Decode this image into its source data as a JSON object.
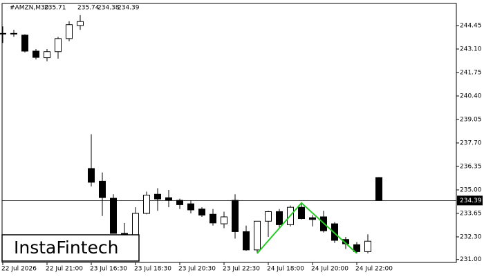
{
  "chart_data": {
    "type": "candlestick",
    "header": {
      "symbol": "#AMZN,M30",
      "ohlc": [
        235.71,
        235.74,
        234.38,
        234.39
      ]
    },
    "watermark": "InstaFintech",
    "categories": [
      "22 Jul 2026",
      null,
      null,
      null,
      "22 Jul 21:00",
      null,
      null,
      null,
      "23 Jul 16:30",
      null,
      null,
      null,
      "23 Jul 18:30",
      null,
      null,
      null,
      "23 Jul 20:30",
      null,
      null,
      null,
      "23 Jul 22:30",
      null,
      null,
      null,
      "24 Jul 18:00",
      null,
      null,
      null,
      "24 Jul 20:00",
      null,
      null,
      null,
      "24 Jul 22:00",
      null,
      null
    ],
    "open": [
      244.0,
      244.0,
      243.9,
      242.98,
      242.6,
      242.95,
      243.7,
      244.45,
      236.23,
      235.5,
      234.52,
      232.5,
      232.4,
      233.65,
      234.75,
      234.55,
      234.4,
      234.2,
      233.9,
      233.6,
      233.05,
      234.4,
      232.6,
      231.55,
      233.2,
      233.75,
      233.0,
      234.0,
      233.4,
      233.45,
      233.05,
      232.15,
      231.85,
      231.45,
      235.71
    ],
    "high": [
      244.4,
      244.2,
      243.95,
      243.1,
      243.1,
      243.8,
      244.7,
      245.05,
      238.2,
      236.0,
      234.75,
      233.1,
      234.0,
      234.9,
      235.1,
      235.0,
      234.5,
      234.4,
      234.0,
      233.9,
      233.75,
      234.75,
      232.95,
      233.2,
      233.8,
      233.9,
      234.1,
      234.3,
      233.55,
      233.8,
      233.15,
      232.3,
      232.0,
      232.45,
      235.74
    ],
    "low": [
      243.45,
      243.8,
      242.9,
      242.5,
      242.4,
      242.55,
      243.55,
      244.2,
      235.2,
      233.5,
      232.5,
      232.2,
      232.2,
      233.6,
      233.8,
      234.0,
      233.9,
      233.65,
      233.45,
      232.95,
      232.8,
      232.2,
      231.5,
      231.35,
      232.3,
      232.75,
      232.9,
      233.3,
      232.9,
      232.55,
      231.95,
      231.6,
      231.35,
      231.35,
      234.38
    ],
    "close": [
      244.0,
      244.0,
      242.98,
      242.62,
      242.95,
      243.7,
      244.5,
      244.68,
      235.44,
      234.56,
      232.5,
      232.4,
      233.65,
      234.7,
      234.48,
      234.4,
      234.15,
      233.85,
      233.55,
      233.1,
      233.45,
      232.6,
      231.55,
      233.2,
      233.75,
      233.0,
      234.0,
      233.35,
      233.3,
      232.65,
      232.1,
      231.9,
      231.45,
      232.05,
      234.39
    ],
    "up_color": "#ffffff",
    "down_color": "#000000",
    "current_price": 234.39,
    "pattern": {
      "color": "#22cc22",
      "x": [
        23,
        27,
        32
      ],
      "values": [
        231.35,
        234.25,
        231.35
      ]
    },
    "ylim": [
      230.83,
      245.72
    ],
    "yticks": [
      {
        "value": 244.45,
        "label": "244.45"
      },
      {
        "value": 243.1,
        "label": "243.10"
      },
      {
        "value": 241.75,
        "label": "241.75"
      },
      {
        "value": 240.4,
        "label": "240.40"
      },
      {
        "value": 239.05,
        "label": "239.05"
      },
      {
        "value": 237.7,
        "label": "237.70"
      },
      236.35,
      {
        "value": 235,
        "label": "235.00"
      },
      233.65,
      {
        "value": 232.3,
        "label": "232.30"
      },
      {
        "value": 231,
        "label": "231.00"
      }
    ]
  }
}
